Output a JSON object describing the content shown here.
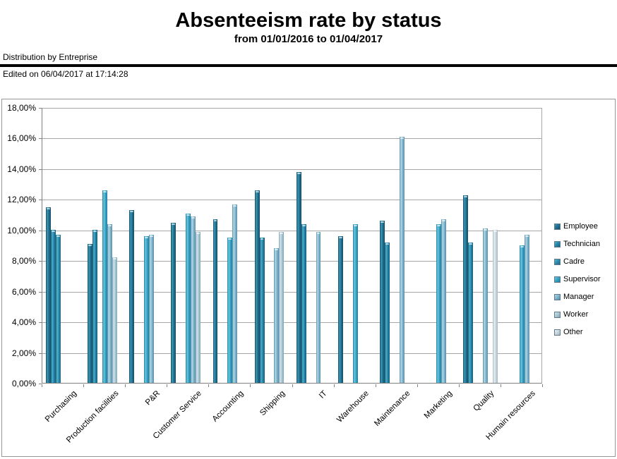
{
  "header": {
    "title": "Absenteeism rate by status",
    "subtitle": "from 01/01/2016 to 01/04/2017",
    "distribution_label": "Distribution by Entreprise",
    "edited_label": "Edited on 06/04/2017 at 17:14:28"
  },
  "chart_data": {
    "type": "bar",
    "title": "Absenteeism rate by status",
    "subtitle": "from 01/01/2016 to 01/04/2017",
    "xlabel": "",
    "ylabel": "",
    "ylim": [
      0,
      18
    ],
    "ytick_step": 2,
    "ytick_labels": [
      "18,00%",
      "16,00%",
      "14,00%",
      "12,00%",
      "10,00%",
      "8,00%",
      "6,00%",
      "4,00%",
      "2,00%",
      "0,00%"
    ],
    "grid": "horizontal",
    "legend_position": "right",
    "categories": [
      "Purchasing",
      "Production facilities",
      "P&R",
      "Customer Service",
      "Accounting",
      "Shipping",
      "IT",
      "Warehouse",
      "Maintenance",
      "Marketing",
      "Quality",
      "Humain resources"
    ],
    "series": [
      {
        "name": "Employee",
        "color": {
          "base": "#1d6f8d",
          "light": "#3e98b6",
          "dark": "#134f68"
        },
        "values": [
          11.5,
          9.1,
          11.3,
          10.5,
          10.7,
          12.6,
          13.8,
          9.6,
          10.6,
          null,
          12.3,
          null
        ]
      },
      {
        "name": "Technician",
        "color": {
          "base": "#2383a6",
          "light": "#4fb0cc",
          "dark": "#175f7e"
        },
        "values": [
          10.0,
          10.0,
          null,
          null,
          null,
          9.5,
          10.4,
          null,
          9.2,
          null,
          9.2,
          null
        ]
      },
      {
        "name": "Cadre",
        "color": {
          "base": "#2a8cab",
          "light": "#58b6d0",
          "dark": "#1d6884"
        },
        "values": [
          9.7,
          null,
          null,
          null,
          null,
          null,
          null,
          null,
          null,
          null,
          null,
          null
        ]
      },
      {
        "name": "Supervisor",
        "color": {
          "base": "#35a4c4",
          "light": "#6cc8e0",
          "dark": "#227da0"
        },
        "values": [
          null,
          12.6,
          9.6,
          11.1,
          9.5,
          null,
          null,
          10.4,
          null,
          10.4,
          null,
          9.0
        ]
      },
      {
        "name": "Manager",
        "color": {
          "base": "#7fb4cc",
          "light": "#b4d8e6",
          "dark": "#5890ab"
        },
        "values": [
          null,
          10.4,
          9.7,
          10.9,
          11.7,
          8.8,
          9.9,
          null,
          16.1,
          10.7,
          10.1,
          9.7
        ]
      },
      {
        "name": "Worker",
        "color": {
          "base": "#a9c6d2",
          "light": "#d3e4ec",
          "dark": "#84a8b8"
        },
        "values": [
          null,
          8.2,
          null,
          9.9,
          null,
          9.9,
          null,
          null,
          null,
          null,
          null,
          null
        ]
      },
      {
        "name": "Other",
        "color": {
          "base": "#c9d6dc",
          "light": "#e9eff2",
          "dark": "#a5b8c2"
        },
        "values": [
          null,
          null,
          null,
          null,
          null,
          null,
          null,
          null,
          null,
          null,
          10.0,
          null
        ]
      }
    ]
  }
}
